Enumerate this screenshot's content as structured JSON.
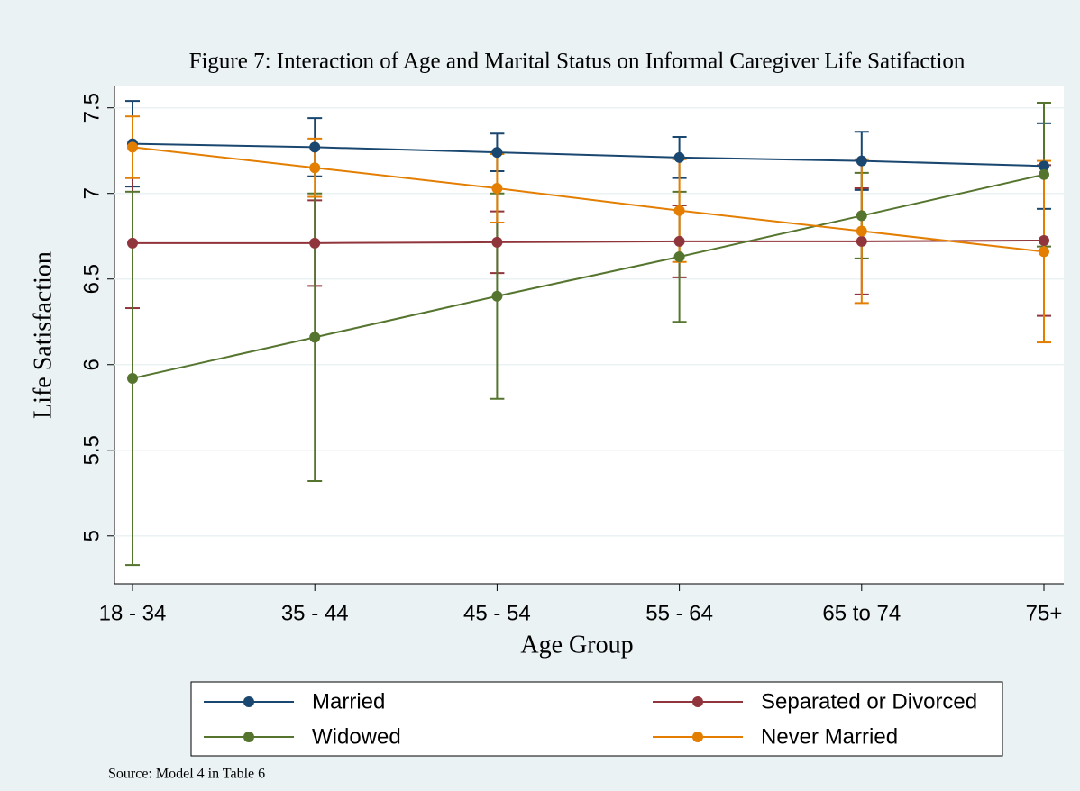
{
  "chart_data": {
    "type": "line",
    "title": "Figure 7: Interaction of Age and Marital Status on Informal Caregiver Life Satifaction",
    "x_label": "Age Group",
    "y_label": "Life Satisfaction",
    "note": "Source: Model 4 in Table 6",
    "categories": [
      "18 - 34",
      "35 - 44",
      "45 - 54",
      "55 - 64",
      "65 to 74",
      "75+"
    ],
    "series": [
      {
        "name": "Married",
        "color": "#1a476f",
        "values": [
          7.29,
          7.27,
          7.24,
          7.21,
          7.19,
          7.16
        ],
        "errors": [
          0.25,
          0.17,
          0.11,
          0.12,
          0.17,
          0.25
        ]
      },
      {
        "name": "Separated or Divorced",
        "color": "#90353b",
        "values": [
          6.71,
          6.71,
          6.715,
          6.72,
          6.72,
          6.725
        ],
        "errors": [
          0.38,
          0.25,
          0.18,
          0.21,
          0.31,
          0.44
        ]
      },
      {
        "name": "Widowed",
        "color": "#55752f",
        "values": [
          5.92,
          6.16,
          6.4,
          6.63,
          6.87,
          7.11
        ],
        "errors": [
          1.09,
          0.84,
          0.6,
          0.38,
          0.25,
          0.42
        ]
      },
      {
        "name": "Never Married",
        "color": "#e37e00",
        "values": [
          7.27,
          7.15,
          7.03,
          6.9,
          6.78,
          6.66
        ],
        "errors": [
          0.18,
          0.17,
          0.2,
          0.3,
          0.42,
          0.53
        ]
      }
    ],
    "ylim": [
      4.72,
      7.63
    ],
    "yticks": [
      5,
      5.5,
      6,
      6.5,
      7,
      7.5
    ],
    "grid": true,
    "legend": "bottom"
  }
}
